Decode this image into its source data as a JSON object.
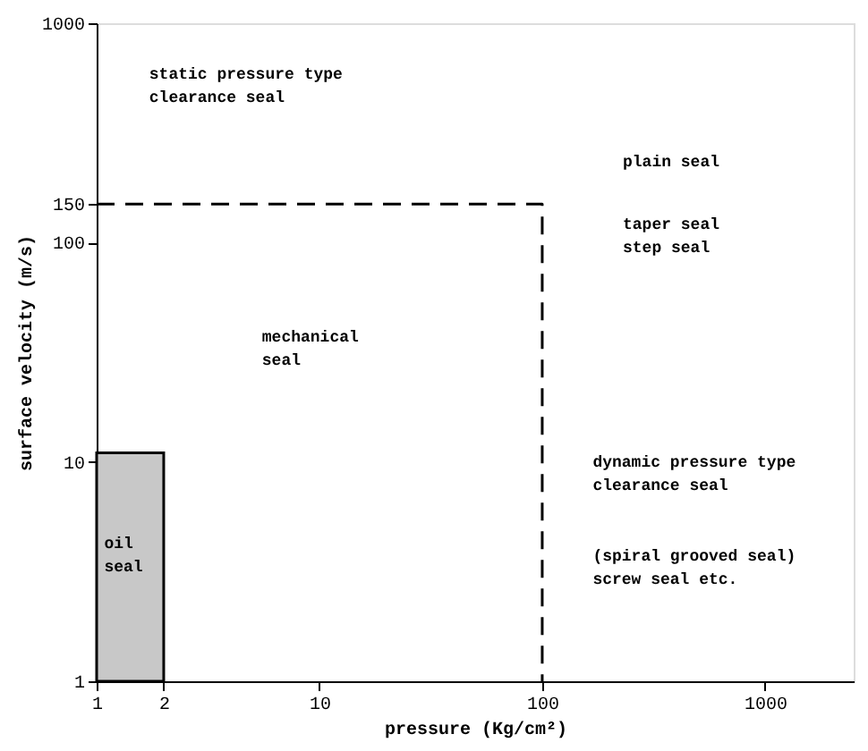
{
  "chart_data": {
    "type": "line",
    "xlabel": "pressure (Kg/cm²)",
    "ylabel": "surface velocity (m/s)",
    "log": "xy",
    "xlim": [
      1,
      2500
    ],
    "ylim": [
      1,
      1000
    ],
    "xticks": [
      1,
      2,
      10,
      100,
      1000
    ],
    "yticks": [
      1,
      10,
      100,
      150,
      1000
    ],
    "grid": false,
    "series": [
      {
        "x": [
          1,
          100,
          100
        ],
        "values": [
          150,
          150,
          1
        ],
        "color": "#000000",
        "line_style": "dashed"
      },
      {
        "type": "area",
        "x": [
          1,
          2
        ],
        "values": [
          11,
          11
        ],
        "color": "#c8c8c8"
      }
    ],
    "annotations": [
      "static pressure type\nclearance seal",
      "plain seal",
      "taper seal\nstep seal",
      "mechanical\nseal",
      "oil\nseal",
      "dynamic pressure type\nclearance seal",
      "(spiral grooved seal)\nscrew seal etc."
    ]
  }
}
